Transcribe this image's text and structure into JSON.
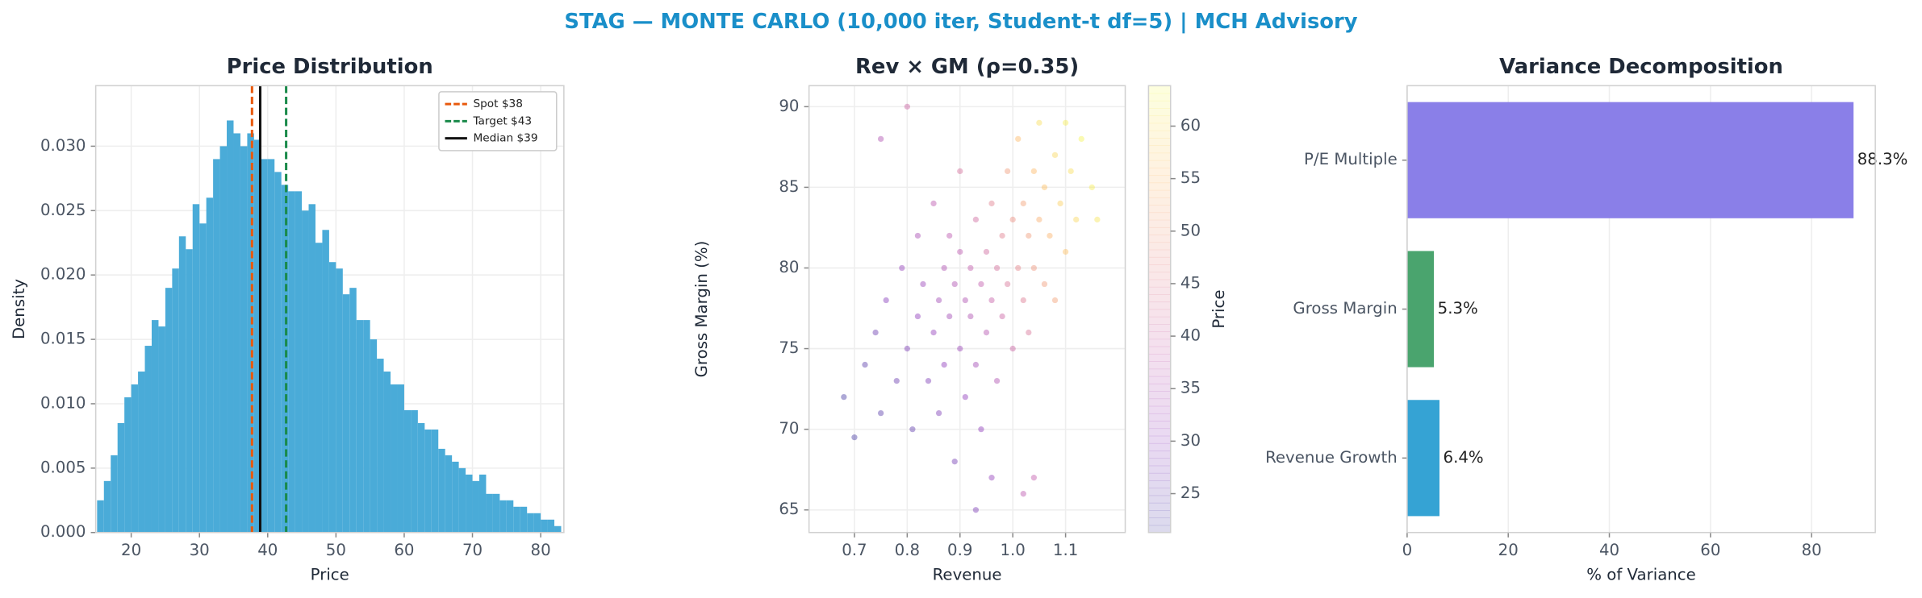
{
  "title": "STAG — MONTE CARLO (10,000 iter, Student-t df=5) | MCH Advisory",
  "chart_data": [
    {
      "type": "histogram",
      "title": "Price Distribution",
      "xlabel": "Price",
      "ylabel": "Density",
      "color": "#4aabd8",
      "bins": [
        15,
        16,
        17,
        18,
        19,
        20,
        21,
        22,
        23,
        24,
        25,
        26,
        27,
        28,
        29,
        30,
        31,
        32,
        33,
        34,
        35,
        36,
        37,
        38,
        39,
        40,
        41,
        42,
        43,
        44,
        45,
        46,
        47,
        48,
        49,
        50,
        51,
        52,
        53,
        54,
        55,
        56,
        57,
        58,
        59,
        60,
        61,
        62,
        63,
        64,
        65,
        66,
        67,
        68,
        69,
        70,
        71,
        72,
        73,
        74,
        75,
        76,
        77,
        78,
        79,
        80,
        81,
        82,
        83
      ],
      "values": [
        0.0025,
        0.004,
        0.006,
        0.0085,
        0.0105,
        0.0115,
        0.0125,
        0.0145,
        0.0165,
        0.016,
        0.019,
        0.0205,
        0.023,
        0.022,
        0.0255,
        0.024,
        0.026,
        0.029,
        0.03,
        0.032,
        0.031,
        0.03,
        0.031,
        0.0305,
        0.029,
        0.029,
        0.028,
        0.027,
        0.0265,
        0.0265,
        0.025,
        0.0255,
        0.0225,
        0.0235,
        0.021,
        0.0205,
        0.0185,
        0.019,
        0.0165,
        0.0165,
        0.015,
        0.0135,
        0.0125,
        0.0115,
        0.0115,
        0.0095,
        0.0095,
        0.0085,
        0.008,
        0.008,
        0.0065,
        0.006,
        0.0055,
        0.005,
        0.0045,
        0.004,
        0.0045,
        0.003,
        0.003,
        0.0025,
        0.0025,
        0.002,
        0.002,
        0.0015,
        0.0015,
        0.001,
        0.001,
        0.0005
      ],
      "lines": [
        {
          "name": "Spot $38",
          "value": 37.7,
          "color": "#e8590c",
          "style": "dashed"
        },
        {
          "name": "Target $43",
          "value": 42.7,
          "color": "#1a8a4a",
          "style": "dashed"
        },
        {
          "name": "Median $39",
          "value": 38.9,
          "color": "#111111",
          "style": "solid"
        }
      ],
      "legend": "upper right",
      "grid": true,
      "xlim": [
        14.8,
        83.4
      ],
      "xticks": [
        20,
        30,
        40,
        50,
        60,
        70,
        80
      ],
      "ylim": [
        0,
        0.0347
      ],
      "yticks": [
        {
          "value": 0,
          "label": "0.000"
        },
        {
          "value": 0.005,
          "label": "0.005"
        },
        {
          "value": 0.01,
          "label": "0.010"
        },
        {
          "value": 0.015,
          "label": "0.015"
        },
        {
          "value": 0.02,
          "label": "0.020"
        },
        {
          "value": 0.025,
          "label": "0.025"
        },
        {
          "value": 0.03,
          "label": "0.030"
        }
      ]
    },
    {
      "type": "scatter",
      "title": "Rev × GM (ρ=0.35)",
      "xlabel": "Revenue",
      "ylabel": "Gross Margin (%)",
      "grid": true,
      "x": [
        0.68,
        0.7,
        0.72,
        0.74,
        0.75,
        0.76,
        0.78,
        0.79,
        0.8,
        0.81,
        0.82,
        0.82,
        0.83,
        0.84,
        0.85,
        0.85,
        0.86,
        0.86,
        0.87,
        0.87,
        0.88,
        0.88,
        0.89,
        0.89,
        0.9,
        0.9,
        0.9,
        0.91,
        0.91,
        0.92,
        0.92,
        0.93,
        0.93,
        0.94,
        0.94,
        0.95,
        0.95,
        0.96,
        0.96,
        0.97,
        0.97,
        0.98,
        0.98,
        0.99,
        0.99,
        1.0,
        1.0,
        1.01,
        1.01,
        1.02,
        1.02,
        1.03,
        1.03,
        1.04,
        1.04,
        1.05,
        1.05,
        1.06,
        1.06,
        1.07,
        1.08,
        1.08,
        1.09,
        1.1,
        1.1,
        1.11,
        1.12,
        1.13,
        1.15,
        1.16,
        0.93,
        0.96,
        1.04,
        0.75,
        0.8,
        1.02
      ],
      "y": [
        72,
        69.5,
        74,
        76,
        71,
        78,
        73,
        80,
        75,
        70,
        77,
        82,
        79,
        73,
        76,
        84,
        78,
        71,
        80,
        74,
        77,
        82,
        79,
        68,
        75,
        81,
        86,
        78,
        72,
        80,
        77,
        83,
        74,
        79,
        70,
        81,
        76,
        84,
        78,
        73,
        80,
        82,
        77,
        86,
        79,
        75,
        83,
        80,
        88,
        78,
        84,
        82,
        76,
        86,
        80,
        83,
        89,
        79,
        85,
        82,
        87,
        78,
        84,
        89,
        81,
        86,
        83,
        88,
        85,
        83,
        65,
        67,
        67,
        88,
        90,
        66
      ],
      "c": [
        22,
        22,
        24,
        26,
        24,
        29,
        26,
        31,
        28,
        25,
        30,
        34,
        32,
        28,
        31,
        37,
        33,
        28,
        35,
        30,
        33,
        37,
        35,
        27,
        32,
        37,
        42,
        35,
        30,
        38,
        35,
        41,
        33,
        38,
        30,
        41,
        36,
        45,
        39,
        35,
        42,
        45,
        40,
        50,
        43,
        40,
        48,
        46,
        55,
        44,
        51,
        50,
        43,
        55,
        49,
        53,
        60,
        50,
        56,
        54,
        59,
        51,
        58,
        62,
        56,
        60,
        59,
        63,
        62,
        61,
        28,
        31,
        38,
        35,
        40,
        37
      ],
      "colormap": "plasma",
      "clim": [
        21.3,
        63.85
      ],
      "cticks": [
        25,
        30,
        35,
        40,
        45,
        50,
        55,
        60
      ],
      "clabel": "Price",
      "xlim": [
        0.614,
        1.213
      ],
      "xticks": [
        0.7,
        0.8,
        0.9,
        {
          "value": 1,
          "label": "1.0"
        },
        1.1
      ],
      "ylim": [
        63.6,
        91.3
      ],
      "yticks": [
        65,
        70,
        75,
        80,
        85,
        90
      ]
    },
    {
      "type": "barh",
      "title": "Variance Decomposition",
      "xlabel": "% of Variance",
      "grid": true,
      "categories": [
        "Revenue Growth",
        "Gross Margin",
        "P/E Multiple"
      ],
      "values": [
        6.4,
        5.3,
        88.3
      ],
      "value_labels": [
        "6.4%",
        "5.3%",
        "88.3%"
      ],
      "colors": [
        "#35a3d4",
        "#4aa46e",
        "#8a7fe8"
      ],
      "xlim": [
        0,
        92.6
      ],
      "xticks": [
        0,
        20,
        40,
        60,
        80
      ]
    }
  ]
}
